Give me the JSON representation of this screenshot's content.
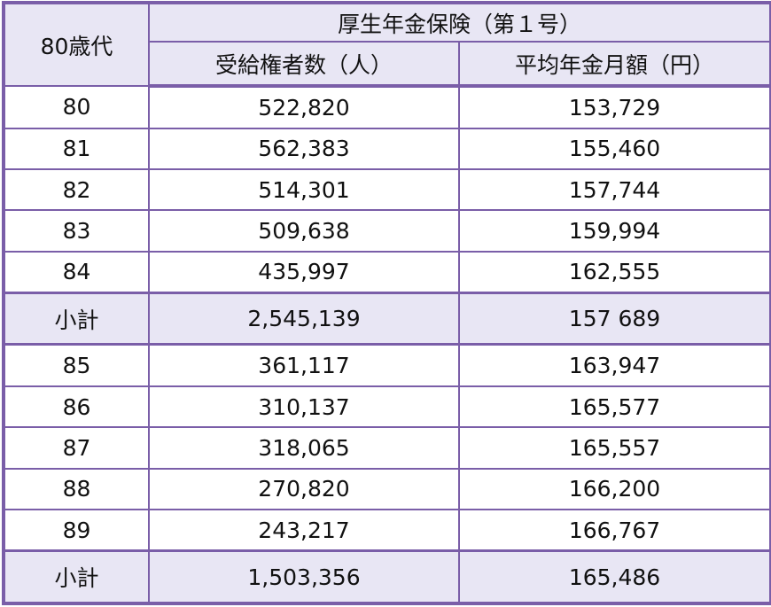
{
  "table": {
    "corner": "80歳代",
    "group_header": "厚生年金保険（第１号）",
    "columns": [
      "受給権者数（人）",
      "平均年金月額（円）"
    ],
    "rows": [
      [
        "80",
        "522,820",
        "153,729"
      ],
      [
        "81",
        "562,383",
        "155,460"
      ],
      [
        "82",
        "514,301",
        "157,744"
      ],
      [
        "83",
        "509,638",
        "159,994"
      ],
      [
        "84",
        "435,997",
        "162,555"
      ],
      [
        "小計",
        "2,545,139",
        "157 689"
      ],
      [
        "85",
        "361,117",
        "163,947"
      ],
      [
        "86",
        "310,137",
        "165,577"
      ],
      [
        "87",
        "318,065",
        "165,557"
      ],
      [
        "88",
        "270,820",
        "166,200"
      ],
      [
        "89",
        "243,217",
        "166,767"
      ],
      [
        "小計",
        "1,503,356",
        "165,486"
      ]
    ],
    "subtotal_rows": [
      5,
      11
    ]
  }
}
